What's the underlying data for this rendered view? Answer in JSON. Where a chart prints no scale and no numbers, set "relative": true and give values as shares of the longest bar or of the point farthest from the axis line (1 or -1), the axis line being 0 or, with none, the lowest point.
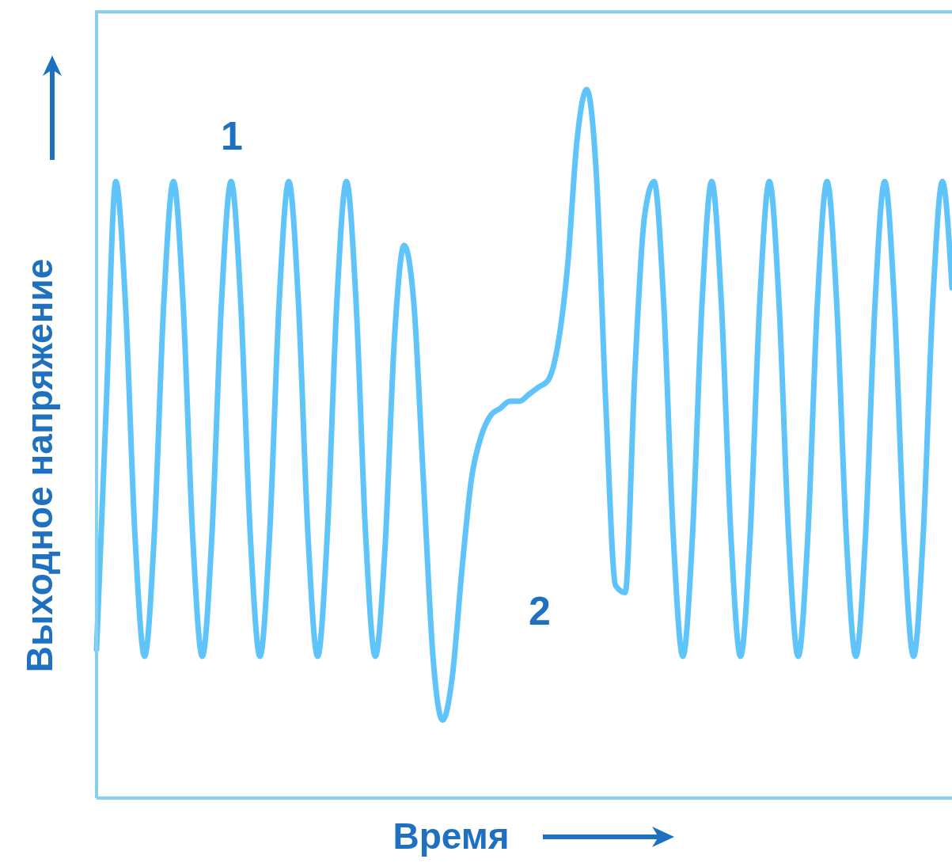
{
  "chart_data": {
    "type": "line",
    "relative": true,
    "xlabel": "Время",
    "ylabel": "Выходное напряжение",
    "annotations": [
      "1",
      "2"
    ],
    "categories": [
      null,
      null,
      null,
      null,
      null,
      null,
      null,
      null,
      null,
      null,
      null,
      null,
      null,
      null,
      null,
      null,
      null,
      null,
      null,
      null,
      null,
      null,
      null,
      null,
      null,
      null,
      null,
      null,
      null,
      null,
      null,
      null,
      null,
      null,
      null,
      null,
      null,
      null,
      null,
      null,
      null,
      null,
      null,
      null,
      null,
      null,
      null,
      null,
      null,
      null,
      null,
      null,
      null,
      null,
      null,
      null,
      null,
      null,
      null,
      null,
      null,
      null,
      null,
      null,
      null,
      null,
      null,
      null,
      null,
      null,
      null,
      null,
      null,
      null,
      null,
      null,
      null,
      null,
      null,
      null,
      null,
      null,
      null,
      null,
      null,
      null,
      null,
      null,
      null,
      null
    ],
    "series": [
      {
        "color": "#5ec4fa",
        "values": [
          0.21,
          0.55,
          0.87,
          0.7,
          0.37,
          0.2,
          0.37,
          0.7,
          0.87,
          0.7,
          0.37,
          0.2,
          0.37,
          0.7,
          0.87,
          0.7,
          0.37,
          0.2,
          0.37,
          0.7,
          0.87,
          0.7,
          0.37,
          0.2,
          0.37,
          0.7,
          0.87,
          0.7,
          0.37,
          0.2,
          0.35,
          0.65,
          0.78,
          0.7,
          0.45,
          0.2,
          0.11,
          0.17,
          0.32,
          0.45,
          0.51,
          0.54,
          0.55,
          0.56,
          0.56,
          0.57,
          0.58,
          0.59,
          0.64,
          0.75,
          0.93,
          1.0,
          0.88,
          0.55,
          0.3,
          0.29,
          0.6,
          0.82,
          0.87,
          0.7,
          0.37,
          0.2,
          0.37,
          0.7,
          0.87,
          0.7,
          0.37,
          0.2,
          0.37,
          0.7,
          0.87,
          0.7,
          0.37,
          0.2,
          0.37,
          0.7,
          0.87,
          0.7,
          0.37,
          0.2,
          0.37,
          0.7,
          0.87,
          0.7,
          0.37,
          0.2,
          0.37,
          0.7,
          0.87,
          0.72
        ]
      }
    ]
  }
}
